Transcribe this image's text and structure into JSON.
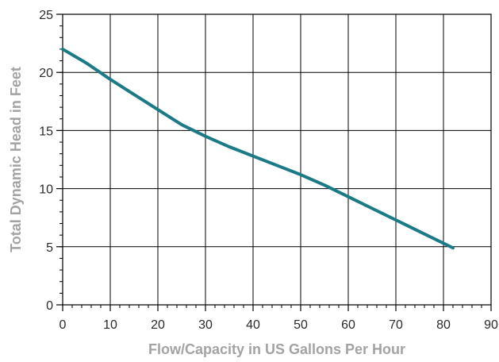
{
  "chart_data": {
    "type": "line",
    "title": "",
    "xlabel": "Flow/Capacity in US Gallons Per Hour",
    "ylabel": "Total Dynamic Head in Feet",
    "xlim": [
      0,
      90
    ],
    "ylim": [
      0,
      25
    ],
    "x_ticks": [
      "0",
      "10",
      "20",
      "30",
      "40",
      "50",
      "60",
      "70",
      "80",
      "90"
    ],
    "y_ticks": [
      "0",
      "5",
      "10",
      "15",
      "20",
      "25"
    ],
    "grid": true,
    "legend": "none",
    "series": [
      {
        "color": "#1a7a85",
        "x": [
          0,
          5,
          10,
          15,
          20,
          25,
          30,
          35,
          40,
          45,
          50,
          55,
          60,
          65,
          70,
          75,
          80,
          82
        ],
        "y": [
          22.0,
          20.8,
          19.4,
          18.1,
          16.8,
          15.5,
          14.5,
          13.6,
          12.8,
          12.0,
          11.2,
          10.3,
          9.3,
          8.3,
          7.3,
          6.3,
          5.3,
          4.9
        ]
      }
    ]
  }
}
